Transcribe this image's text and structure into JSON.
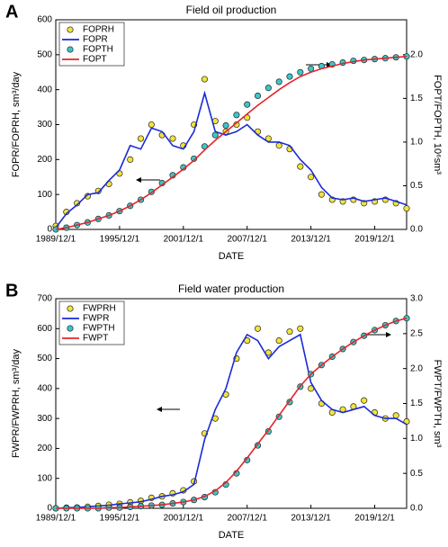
{
  "chart_data": [
    {
      "type": "line",
      "panel_label": "A",
      "title": "Field oil production",
      "xlabel": "DATE",
      "ylabel": "FOPR/FOPRH, sm³/day",
      "y2label": "FOPT/FOPTH, 10⁶sm³",
      "x": [
        "1989/12/1",
        "1990/12/1",
        "1991/12/1",
        "1992/12/1",
        "1993/12/1",
        "1994/12/1",
        "1995/12/1",
        "1996/12/1",
        "1997/12/1",
        "1998/12/1",
        "1999/12/1",
        "2000/12/1",
        "2001/12/1",
        "2002/12/1",
        "2003/12/1",
        "2004/12/1",
        "2005/12/1",
        "2006/12/1",
        "2007/12/1",
        "2008/12/1",
        "2009/12/1",
        "2010/12/1",
        "2011/12/1",
        "2012/12/1",
        "2013/12/1",
        "2014/12/1",
        "2015/12/1",
        "2016/12/1",
        "2017/12/1",
        "2018/12/1",
        "2019/12/1",
        "2020/12/1",
        "2021/12/1",
        "2022/12/1"
      ],
      "xlim": [
        "1989/12/1",
        "2022/12/1"
      ],
      "xticks": [
        "1989/12/1",
        "1995/12/1",
        "2001/12/1",
        "2007/12/1",
        "2013/12/1",
        "2019/12/1"
      ],
      "ylim": [
        0,
        600
      ],
      "yticks": [
        0,
        100,
        200,
        300,
        400,
        500,
        600
      ],
      "y2lim": [
        0,
        2.4
      ],
      "y2ticks": [
        {
          "value": 0,
          "label": "0.0"
        },
        {
          "value": 0.5,
          "label": "0.5"
        },
        {
          "value": 1,
          "label": "1.0"
        },
        {
          "value": 1.5,
          "label": "1.5"
        },
        {
          "value": 2,
          "label": "2.0"
        }
      ],
      "series": [
        {
          "name": "FOPRH",
          "mode": "markers",
          "color": "#f2e33a",
          "values": [
            10,
            50,
            75,
            95,
            110,
            130,
            160,
            200,
            260,
            300,
            270,
            260,
            240,
            300,
            430,
            310,
            280,
            300,
            320,
            280,
            260,
            240,
            230,
            180,
            150,
            100,
            85,
            80,
            85,
            75,
            80,
            85,
            75,
            60
          ]
        },
        {
          "name": "FOPR",
          "mode": "line",
          "color": "#1a2ad8",
          "values": [
            5,
            45,
            70,
            100,
            105,
            140,
            170,
            240,
            230,
            290,
            280,
            240,
            230,
            280,
            390,
            280,
            270,
            280,
            300,
            270,
            250,
            250,
            240,
            200,
            170,
            120,
            90,
            85,
            90,
            80,
            85,
            90,
            80,
            70
          ]
        },
        {
          "name": "FOPTH",
          "mode": "markers",
          "axis": "y2",
          "color": "#3cc6c8",
          "values": [
            0,
            0.02,
            0.05,
            0.08,
            0.12,
            0.16,
            0.21,
            0.27,
            0.34,
            0.43,
            0.53,
            0.62,
            0.71,
            0.81,
            0.95,
            1.08,
            1.19,
            1.31,
            1.43,
            1.53,
            1.62,
            1.69,
            1.75,
            1.8,
            1.84,
            1.87,
            1.89,
            1.91,
            1.93,
            1.94,
            1.95,
            1.96,
            1.97,
            1.98
          ]
        },
        {
          "name": "FOPT",
          "mode": "line",
          "axis": "y2",
          "color": "#e4242a",
          "values": [
            0,
            0.02,
            0.05,
            0.08,
            0.12,
            0.16,
            0.21,
            0.27,
            0.34,
            0.42,
            0.51,
            0.6,
            0.69,
            0.79,
            0.91,
            1.02,
            1.12,
            1.22,
            1.32,
            1.42,
            1.51,
            1.6,
            1.68,
            1.75,
            1.8,
            1.84,
            1.87,
            1.9,
            1.92,
            1.94,
            1.95,
            1.96,
            1.97,
            1.98
          ]
        }
      ]
    },
    {
      "type": "line",
      "panel_label": "B",
      "title": "Field water production",
      "xlabel": "DATE",
      "ylabel": "FWPR/FWPRH, sm³/day",
      "y2label": "FWPT/FWPTH, sm³",
      "x": [
        "1989/12/1",
        "1990/12/1",
        "1991/12/1",
        "1992/12/1",
        "1993/12/1",
        "1994/12/1",
        "1995/12/1",
        "1996/12/1",
        "1997/12/1",
        "1998/12/1",
        "1999/12/1",
        "2000/12/1",
        "2001/12/1",
        "2002/12/1",
        "2003/12/1",
        "2004/12/1",
        "2005/12/1",
        "2006/12/1",
        "2007/12/1",
        "2008/12/1",
        "2009/12/1",
        "2010/12/1",
        "2011/12/1",
        "2012/12/1",
        "2013/12/1",
        "2014/12/1",
        "2015/12/1",
        "2016/12/1",
        "2017/12/1",
        "2018/12/1",
        "2019/12/1",
        "2020/12/1",
        "2021/12/1",
        "2022/12/1"
      ],
      "xlim": [
        "1989/12/1",
        "2022/12/1"
      ],
      "xticks": [
        "1989/12/1",
        "1995/12/1",
        "2001/12/1",
        "2007/12/1",
        "2013/12/1",
        "2019/12/1"
      ],
      "ylim": [
        0,
        700
      ],
      "yticks": [
        0,
        100,
        200,
        300,
        400,
        500,
        600,
        700
      ],
      "y2lim": [
        0,
        3
      ],
      "y2ticks": [
        {
          "value": 0,
          "label": "0.0"
        },
        {
          "value": 0.5,
          "label": "0.5"
        },
        {
          "value": 1,
          "label": "1.0"
        },
        {
          "value": 1.5,
          "label": "1.5"
        },
        {
          "value": 2,
          "label": "2.0"
        },
        {
          "value": 2.5,
          "label": "2.5"
        },
        {
          "value": 3,
          "label": "3.0"
        }
      ],
      "series": [
        {
          "name": "FWPRH",
          "mode": "markers",
          "color": "#f2e33a",
          "values": [
            0,
            2,
            3,
            5,
            8,
            12,
            15,
            20,
            25,
            35,
            40,
            50,
            60,
            90,
            250,
            300,
            380,
            500,
            560,
            600,
            520,
            560,
            590,
            600,
            400,
            350,
            320,
            330,
            340,
            360,
            320,
            300,
            310,
            290
          ]
        },
        {
          "name": "FWPR",
          "mode": "line",
          "color": "#1a2ad8",
          "values": [
            0,
            2,
            3,
            5,
            8,
            10,
            15,
            18,
            22,
            30,
            40,
            45,
            55,
            80,
            230,
            330,
            400,
            520,
            580,
            560,
            500,
            540,
            560,
            580,
            420,
            360,
            330,
            320,
            330,
            340,
            310,
            300,
            300,
            280
          ]
        },
        {
          "name": "FWPTH",
          "mode": "markers",
          "axis": "y2",
          "color": "#3cc6c8",
          "values": [
            0,
            0,
            0,
            0,
            0,
            0.01,
            0.01,
            0.02,
            0.03,
            0.04,
            0.05,
            0.07,
            0.09,
            0.12,
            0.16,
            0.23,
            0.34,
            0.5,
            0.69,
            0.9,
            1.1,
            1.31,
            1.52,
            1.74,
            1.92,
            2.05,
            2.17,
            2.28,
            2.38,
            2.47,
            2.55,
            2.62,
            2.68,
            2.72
          ]
        },
        {
          "name": "FWPT",
          "mode": "line",
          "axis": "y2",
          "color": "#e4242a",
          "values": [
            0,
            0,
            0,
            0,
            0,
            0.01,
            0.01,
            0.02,
            0.03,
            0.04,
            0.05,
            0.07,
            0.09,
            0.12,
            0.17,
            0.25,
            0.37,
            0.53,
            0.72,
            0.92,
            1.12,
            1.33,
            1.54,
            1.75,
            1.92,
            2.05,
            2.17,
            2.28,
            2.38,
            2.47,
            2.55,
            2.62,
            2.68,
            2.72
          ]
        }
      ]
    }
  ]
}
